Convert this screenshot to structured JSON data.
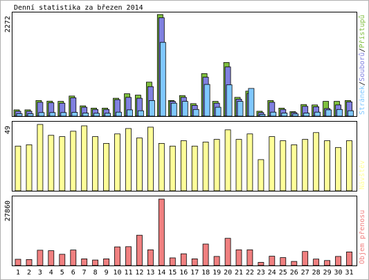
{
  "chart_data": {
    "type": "bar",
    "title": "Denní statistika za březen 2014",
    "categories": [
      "1",
      "2",
      "3",
      "4",
      "5",
      "6",
      "7",
      "8",
      "9",
      "10",
      "11",
      "12",
      "13",
      "14",
      "15",
      "16",
      "17",
      "18",
      "19",
      "20",
      "21",
      "22",
      "23",
      "24",
      "25",
      "26",
      "27",
      "28",
      "29",
      "30",
      "31"
    ],
    "weekend_days": [
      "1",
      "2",
      "8",
      "9",
      "15",
      "16",
      "22",
      "23",
      "29",
      "30"
    ],
    "colors": {
      "pristupu": "#7fbf3f",
      "souboru": "#8080e0",
      "stranek": "#80c8ff",
      "navstev": "#ffff99",
      "objem": "#f08080",
      "weekend_label": "#669933",
      "weekday_label": "#000000"
    },
    "panels": [
      {
        "id": "traffic",
        "ymax_label": "2272",
        "ymax": 2272,
        "legend": [
          {
            "label": "Přístupů",
            "color": "#7fbf3f"
          },
          {
            "label": "Souborů",
            "color": "#8080e0"
          },
          {
            "label": "Stránek",
            "color": "#80c8ff"
          }
        ],
        "series": [
          {
            "name": "Přístupů",
            "values": [
              140,
              140,
              350,
              335,
              330,
              450,
              230,
              180,
              180,
              400,
              500,
              470,
              760,
              2272,
              350,
              460,
              280,
              950,
              330,
              1200,
              420,
              560,
              110,
              350,
              180,
              100,
              260,
              250,
              330,
              330,
              350
            ]
          },
          {
            "name": "Souborů",
            "values": [
              110,
              110,
              310,
              300,
              290,
              410,
              200,
              150,
              150,
              370,
              420,
              400,
              660,
              2200,
              330,
              420,
              240,
              870,
              290,
              1100,
              380,
              510,
              80,
              310,
              150,
              80,
              220,
              210,
              170,
              250,
              320
            ]
          },
          {
            "name": "Stránek",
            "values": [
              55,
              55,
              80,
              80,
              80,
              85,
              70,
              65,
              65,
              90,
              140,
              120,
              350,
              1650,
              290,
              330,
              150,
              710,
              200,
              700,
              330,
              620,
              40,
              90,
              70,
              50,
              70,
              90,
              140,
              150,
              120
            ]
          }
        ]
      },
      {
        "id": "visits",
        "ymax_label": "49",
        "ymax": 49,
        "legend": [
          {
            "label": "Návštěv",
            "color": "#ffff99"
          }
        ],
        "series": [
          {
            "name": "Návštěv",
            "values": [
              33,
              34,
              49,
              41,
              40,
              44,
              48,
              40,
              35,
              42,
              46,
              39,
              47,
              35,
              33,
              37,
              33,
              36,
              38,
              45,
              38,
              42,
              23,
              40,
              37,
              34,
              38,
              43,
              37,
              32,
              37
            ]
          }
        ]
      },
      {
        "id": "volume",
        "ymax_label": "27860",
        "ymax": 27860,
        "legend": [
          {
            "label": "Objem přenosu",
            "color": "#f08080"
          }
        ],
        "series": [
          {
            "name": "Objem přenosu",
            "values": [
              2600,
              2500,
              6400,
              6200,
              4700,
              6500,
              2800,
              2300,
              2800,
              7800,
              7900,
              12700,
              6600,
              27860,
              3200,
              4900,
              2800,
              9000,
              3800,
              11400,
              6600,
              6600,
              1300,
              3900,
              3300,
              1700,
              5900,
              2700,
              2100,
              3800,
              5700
            ]
          }
        ]
      }
    ]
  }
}
